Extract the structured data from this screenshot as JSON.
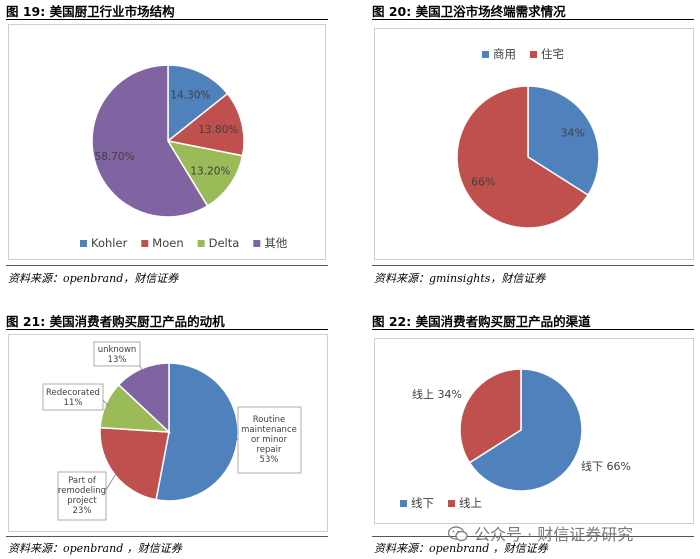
{
  "panels": {
    "p19": {
      "title": "图 19:  美国厨卫行业市场结构",
      "source": "资料来源：openbrand，财信证券"
    },
    "p20": {
      "title": "图 20:  美国卫浴市场终端需求情况",
      "source": "资料来源：gminsights，财信证券"
    },
    "p21": {
      "title": "图 21:  美国消费者购买厨卫产品的动机",
      "source": "资料来源：openbrand ，财信证券"
    },
    "p22": {
      "title": "图 22:  美国消费者购买厨卫产品的渠道",
      "source": "资料来源：openbrand ，财信证券"
    }
  },
  "watermark": "公众号 · 财信证券研究",
  "chart_data": [
    {
      "id": "p19",
      "type": "pie",
      "title": "",
      "categories": [
        "Kohler",
        "Moen",
        "Delta",
        "其他"
      ],
      "values": [
        14.3,
        13.8,
        13.2,
        58.7
      ],
      "labels": [
        "14.30%",
        "13.80%",
        "13.20%",
        "58.70%"
      ],
      "colors": [
        "#4f81bd",
        "#c0504d",
        "#9bbb59",
        "#8064a2"
      ],
      "legend_position": "bottom"
    },
    {
      "id": "p20",
      "type": "pie",
      "title": "",
      "categories": [
        "商用",
        "住宅"
      ],
      "values": [
        34,
        66
      ],
      "labels": [
        "34%",
        "66%"
      ],
      "colors": [
        "#4f81bd",
        "#c0504d"
      ],
      "legend_position": "top-left"
    },
    {
      "id": "p21",
      "type": "pie",
      "title": "",
      "categories": [
        "Routine maintenance or minor repair",
        "Part of remodeling project",
        "Redecorated",
        "unknown"
      ],
      "values": [
        53,
        23,
        11,
        13
      ],
      "labels": [
        [
          "Routine",
          "maintenance",
          "or minor",
          "repair",
          "53%"
        ],
        [
          "Part of",
          "remodeling",
          "project",
          "23%"
        ],
        [
          "Redecorated",
          "11%"
        ],
        [
          "unknown",
          "13%"
        ]
      ],
      "colors": [
        "#4f81bd",
        "#c0504d",
        "#9bbb59",
        "#8064a2"
      ],
      "legend_position": "none"
    },
    {
      "id": "p22",
      "type": "pie",
      "title": "",
      "categories": [
        "线下",
        "线上"
      ],
      "values": [
        66,
        34
      ],
      "labels": [
        "线下 66%",
        "线上 34%"
      ],
      "colors": [
        "#4f81bd",
        "#c0504d"
      ],
      "legend_position": "bottom-left"
    }
  ]
}
